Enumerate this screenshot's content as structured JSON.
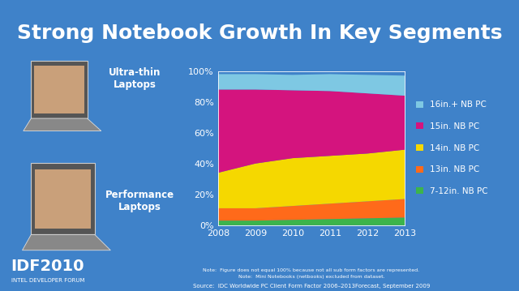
{
  "chart_data": {
    "type": "area",
    "stacked": true,
    "title": "Strong Notebook Growth In Key Segments",
    "x": [
      2008,
      2009,
      2010,
      2011,
      2012,
      2013
    ],
    "series": [
      {
        "name": "7-12in. NB PC",
        "color": "#3cb44b",
        "values": [
          3,
          3,
          3.5,
          4,
          4.5,
          5
        ]
      },
      {
        "name": "13in. NB PC",
        "color": "#ff6a1a",
        "values": [
          8,
          8,
          9,
          10,
          11,
          12
        ]
      },
      {
        "name": "14in. NB PC",
        "color": "#f5d800",
        "values": [
          23,
          29,
          31,
          31,
          31,
          32
        ]
      },
      {
        "name": "15in. NB PC",
        "color": "#d4147e",
        "values": [
          54,
          48,
          44,
          42,
          39,
          35
        ]
      },
      {
        "name": "16in.+ NB PC",
        "color": "#7ec8e3",
        "values": [
          10,
          10,
          10,
          11,
          12,
          13
        ]
      }
    ],
    "xlim": [
      2008,
      2013
    ],
    "xticks": [
      2008,
      2009,
      2010,
      2011,
      2012,
      2013
    ],
    "ylim": [
      0,
      100
    ],
    "yticks": [
      {
        "value": 0,
        "label": "0%"
      },
      {
        "value": 20,
        "label": "20%"
      },
      {
        "value": 40,
        "label": "40%"
      },
      {
        "value": 60,
        "label": "60%"
      },
      {
        "value": 80,
        "label": "80%"
      },
      {
        "value": 100,
        "label": "100%"
      }
    ],
    "grid": false,
    "legend": "right"
  },
  "slide": {
    "labels": [
      "Ultra-thin\nLaptops",
      "Performance\nLaptops"
    ],
    "notes": [
      "Note:  Figure does not equal 100% because not all sub form factors are represented.",
      "Note:  Mini Notebooks (netbooks) excluded from dataset."
    ],
    "source": "Source:  IDC Worldwide PC Client Form Factor 2006–2013Forecast, September 2009",
    "logo": {
      "name": "IDF2010",
      "subtitle": "INTEL DEVELOPER FORUM"
    }
  }
}
